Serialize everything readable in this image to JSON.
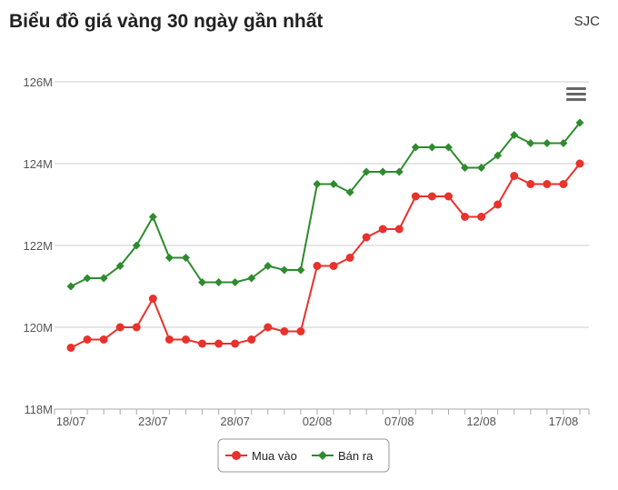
{
  "header": {
    "title": "Biểu đồ giá vàng 30 ngày gần nhất",
    "source": "SJC"
  },
  "menu_icon": "hamburger-menu-icon",
  "chart_data": {
    "type": "line",
    "title": "Biểu đồ giá vàng 30 ngày gần nhất",
    "xlabel": "",
    "ylabel": "",
    "ylim": [
      118,
      126
    ],
    "y_unit": "M",
    "y_ticks": [
      "118M",
      "120M",
      "122M",
      "124M",
      "126M"
    ],
    "x_tick_labels": [
      "18/07",
      "23/07",
      "28/07",
      "02/08",
      "07/08",
      "12/08",
      "17/08"
    ],
    "x": [
      "18/07",
      "19/07",
      "20/07",
      "21/07",
      "22/07",
      "23/07",
      "24/07",
      "25/07",
      "26/07",
      "27/07",
      "28/07",
      "29/07",
      "30/07",
      "31/07",
      "01/08",
      "02/08",
      "03/08",
      "04/08",
      "05/08",
      "06/08",
      "07/08",
      "08/08",
      "09/08",
      "10/08",
      "11/08",
      "12/08",
      "13/08",
      "14/08",
      "15/08",
      "16/08",
      "17/08",
      "18/08"
    ],
    "grid": true,
    "legend_position": "bottom-center",
    "series": [
      {
        "name": "Mua vào",
        "color": "#e8322c",
        "marker": "circle",
        "values": [
          119.5,
          119.7,
          119.7,
          120.0,
          120.0,
          120.7,
          119.7,
          119.7,
          119.6,
          119.6,
          119.6,
          119.7,
          120.0,
          119.9,
          119.9,
          121.5,
          121.5,
          121.7,
          122.2,
          122.4,
          122.4,
          123.2,
          123.2,
          123.2,
          122.7,
          122.7,
          123.0,
          123.7,
          123.5,
          123.5,
          123.5,
          124.0
        ]
      },
      {
        "name": "Bán ra",
        "color": "#2e8b2e",
        "marker": "diamond",
        "values": [
          121.0,
          121.2,
          121.2,
          121.5,
          122.0,
          122.7,
          121.7,
          121.7,
          121.1,
          121.1,
          121.1,
          121.2,
          121.5,
          121.4,
          121.4,
          123.5,
          123.5,
          123.3,
          123.8,
          123.8,
          123.8,
          124.4,
          124.4,
          124.4,
          123.9,
          123.9,
          124.2,
          124.7,
          124.5,
          124.5,
          124.5,
          125.0
        ]
      }
    ]
  }
}
